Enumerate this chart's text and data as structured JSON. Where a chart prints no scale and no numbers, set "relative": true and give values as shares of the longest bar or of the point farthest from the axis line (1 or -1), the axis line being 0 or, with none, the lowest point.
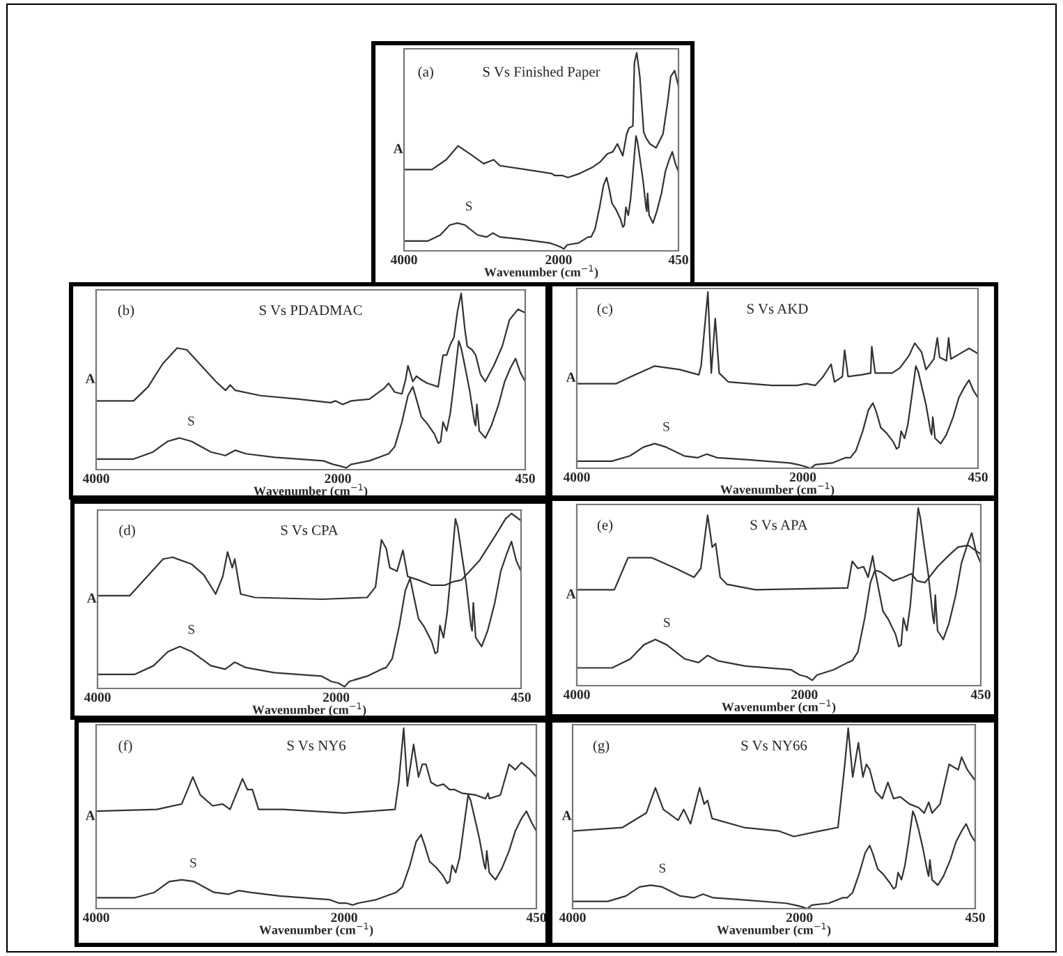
{
  "chart_data": [
    {
      "type": "line",
      "title": "S Vs Finished Paper",
      "annotations": [
        "(a)"
      ],
      "xlabel": "Wavenumber (cm$^{−1}$)",
      "ylabel": "A",
      "xlim": [
        4000,
        450
      ],
      "xticks": [
        4000,
        2000,
        450
      ],
      "relative": true,
      "tick_labels": "x",
      "series": [
        {
          "color": "#333333",
          "x": [
            4000,
            3640,
            3455,
            3300,
            3150,
            2970,
            2840,
            2760,
            2420,
            2090,
            2050,
            1950,
            1880,
            1730,
            1570,
            1460,
            1370,
            1300,
            1240,
            1170,
            1120,
            1090,
            1040,
            1020,
            990,
            950,
            900,
            870,
            820,
            740,
            650,
            590,
            550,
            500,
            450
          ],
          "values": [
            0.41,
            0.41,
            0.46,
            0.53,
            0.49,
            0.44,
            0.46,
            0.43,
            0.41,
            0.39,
            0.38,
            0.38,
            0.37,
            0.39,
            0.42,
            0.45,
            0.49,
            0.5,
            0.54,
            0.48,
            0.59,
            0.62,
            0.63,
            0.95,
            1.0,
            0.88,
            0.6,
            0.57,
            0.54,
            0.52,
            0.59,
            0.75,
            0.88,
            0.91,
            0.83
          ]
        },
        {
          "name": "S",
          "color": "#333333",
          "x": [
            4000,
            3690,
            3530,
            3410,
            3310,
            3210,
            3050,
            2930,
            2850,
            2760,
            2520,
            2120,
            2040,
            1980,
            1930,
            1890,
            1740,
            1620,
            1580,
            1530,
            1470,
            1420,
            1380,
            1350,
            1310,
            1260,
            1200,
            1170,
            1150,
            1130,
            1100,
            1070,
            1040,
            1000,
            980,
            950,
            910,
            870,
            860,
            850,
            830,
            780,
            730,
            670,
            620,
            570,
            530,
            490,
            450
          ],
          "values": [
            0.05,
            0.05,
            0.08,
            0.13,
            0.14,
            0.13,
            0.08,
            0.07,
            0.09,
            0.07,
            0.06,
            0.04,
            0.03,
            0.02,
            0.01,
            0.03,
            0.04,
            0.07,
            0.07,
            0.11,
            0.22,
            0.33,
            0.37,
            0.32,
            0.24,
            0.21,
            0.16,
            0.12,
            0.13,
            0.22,
            0.18,
            0.26,
            0.39,
            0.58,
            0.55,
            0.47,
            0.36,
            0.22,
            0.2,
            0.29,
            0.18,
            0.14,
            0.2,
            0.29,
            0.4,
            0.46,
            0.5,
            0.44,
            0.4
          ]
        }
      ]
    },
    {
      "type": "line",
      "title": "S Vs PDADMAC",
      "annotations": [
        "(b)"
      ],
      "xlabel": "Wavenumber (cm$^{−1}$)",
      "ylabel": "A",
      "xlim": [
        4000,
        450
      ],
      "xticks": [
        4000,
        2000,
        450
      ],
      "relative": true,
      "tick_labels": "x",
      "series": [
        {
          "color": "#333333",
          "x": [
            4000,
            3690,
            3570,
            3450,
            3330,
            3250,
            3130,
            3010,
            2930,
            2890,
            2850,
            2640,
            2320,
            2060,
            2020,
            1960,
            1890,
            1740,
            1620,
            1580,
            1530,
            1470,
            1440,
            1420,
            1380,
            1350,
            1310,
            1260,
            1170,
            1130,
            1100,
            1070,
            1040,
            1010,
            980,
            950,
            930,
            890,
            860,
            820,
            780,
            710,
            640,
            580,
            510,
            450
          ],
          "values": [
            0.39,
            0.39,
            0.47,
            0.6,
            0.69,
            0.68,
            0.59,
            0.5,
            0.45,
            0.48,
            0.45,
            0.42,
            0.4,
            0.38,
            0.39,
            0.37,
            0.39,
            0.4,
            0.46,
            0.49,
            0.44,
            0.43,
            0.51,
            0.59,
            0.5,
            0.53,
            0.51,
            0.49,
            0.47,
            0.65,
            0.65,
            0.71,
            0.75,
            0.9,
            1.0,
            0.8,
            0.7,
            0.68,
            0.65,
            0.54,
            0.5,
            0.59,
            0.7,
            0.85,
            0.91,
            0.89
          ]
        },
        {
          "name": "S",
          "color": "#333333",
          "x": [
            4000,
            3690,
            3530,
            3410,
            3310,
            3210,
            3050,
            2930,
            2850,
            2760,
            2520,
            2120,
            2040,
            1980,
            1930,
            1890,
            1740,
            1620,
            1580,
            1530,
            1470,
            1420,
            1380,
            1350,
            1310,
            1260,
            1200,
            1170,
            1150,
            1130,
            1100,
            1070,
            1040,
            1000,
            980,
            950,
            910,
            870,
            860,
            850,
            830,
            780,
            730,
            670,
            620,
            570,
            530,
            490,
            450
          ],
          "values": [
            0.06,
            0.06,
            0.1,
            0.16,
            0.18,
            0.16,
            0.1,
            0.08,
            0.11,
            0.09,
            0.07,
            0.05,
            0.03,
            0.02,
            0.01,
            0.03,
            0.05,
            0.08,
            0.09,
            0.13,
            0.27,
            0.42,
            0.47,
            0.4,
            0.3,
            0.26,
            0.2,
            0.15,
            0.16,
            0.27,
            0.22,
            0.32,
            0.49,
            0.73,
            0.69,
            0.59,
            0.45,
            0.27,
            0.25,
            0.37,
            0.22,
            0.18,
            0.25,
            0.37,
            0.5,
            0.58,
            0.63,
            0.55,
            0.5
          ]
        }
      ]
    },
    {
      "type": "line",
      "title": "S Vs AKD",
      "annotations": [
        "(c)"
      ],
      "xlabel": "Wavenumber (cm$^{−1}$)",
      "ylabel": "A",
      "xlim": [
        4000,
        450
      ],
      "xticks": [
        4000,
        2000,
        450
      ],
      "relative": true,
      "tick_labels": "x",
      "series": [
        {
          "color": "#333333",
          "x": [
            4000,
            3650,
            3520,
            3310,
            3090,
            2920,
            2900,
            2840,
            2810,
            2775,
            2740,
            2660,
            2270,
            2050,
            1970,
            1890,
            1820,
            1750,
            1720,
            1650,
            1630,
            1600,
            1480,
            1400,
            1390,
            1360,
            1210,
            1140,
            1060,
            1010,
            950,
            910,
            840,
            810,
            790,
            730,
            710,
            690,
            610,
            530,
            450
          ],
          "values": [
            0.48,
            0.48,
            0.52,
            0.58,
            0.56,
            0.53,
            0.58,
            1.0,
            0.54,
            0.85,
            0.54,
            0.49,
            0.47,
            0.47,
            0.48,
            0.47,
            0.52,
            0.59,
            0.49,
            0.52,
            0.67,
            0.52,
            0.53,
            0.54,
            0.69,
            0.54,
            0.54,
            0.57,
            0.64,
            0.71,
            0.66,
            0.56,
            0.62,
            0.74,
            0.63,
            0.61,
            0.74,
            0.62,
            0.65,
            0.68,
            0.65
          ]
        },
        {
          "name": "S",
          "color": "#333333",
          "x": [
            4000,
            3690,
            3530,
            3410,
            3310,
            3210,
            3050,
            2930,
            2850,
            2760,
            2520,
            2120,
            2040,
            1980,
            1930,
            1890,
            1740,
            1620,
            1580,
            1530,
            1470,
            1420,
            1380,
            1350,
            1310,
            1260,
            1200,
            1170,
            1150,
            1130,
            1100,
            1070,
            1040,
            1000,
            980,
            950,
            910,
            870,
            860,
            850,
            830,
            780,
            730,
            670,
            620,
            570,
            530,
            490,
            450
          ],
          "values": [
            0.04,
            0.04,
            0.07,
            0.12,
            0.14,
            0.12,
            0.07,
            0.06,
            0.08,
            0.06,
            0.05,
            0.03,
            0.02,
            0.01,
            0,
            0.02,
            0.03,
            0.06,
            0.06,
            0.1,
            0.21,
            0.33,
            0.37,
            0.32,
            0.23,
            0.2,
            0.15,
            0.11,
            0.12,
            0.21,
            0.17,
            0.25,
            0.39,
            0.58,
            0.55,
            0.47,
            0.36,
            0.21,
            0.19,
            0.29,
            0.17,
            0.14,
            0.19,
            0.29,
            0.4,
            0.46,
            0.5,
            0.44,
            0.4
          ]
        }
      ]
    },
    {
      "type": "line",
      "title": "S Vs CPA",
      "annotations": [
        "(d)"
      ],
      "xlabel": "Wavenumber (cm$^{−1}$)",
      "ylabel": "A",
      "xlim": [
        4000,
        450
      ],
      "xticks": [
        4000,
        2000,
        450
      ],
      "relative": true,
      "tick_labels": "x",
      "series": [
        {
          "color": "#333333",
          "x": [
            4000,
            3730,
            3570,
            3450,
            3370,
            3210,
            3110,
            3010,
            2950,
            2910,
            2870,
            2850,
            2800,
            2680,
            2120,
            1740,
            1670,
            1620,
            1580,
            1550,
            1490,
            1440,
            1400,
            1310,
            1200,
            1090,
            1020,
            950,
            800,
            660,
            580,
            530,
            450
          ],
          "values": [
            0.53,
            0.53,
            0.65,
            0.74,
            0.75,
            0.71,
            0.65,
            0.54,
            0.64,
            0.78,
            0.69,
            0.74,
            0.54,
            0.52,
            0.51,
            0.52,
            0.58,
            0.85,
            0.8,
            0.69,
            0.67,
            0.79,
            0.64,
            0.62,
            0.59,
            0.59,
            0.61,
            0.62,
            0.73,
            0.88,
            0.97,
            1.0,
            0.96
          ]
        },
        {
          "name": "S",
          "color": "#333333",
          "x": [
            4000,
            3690,
            3530,
            3410,
            3310,
            3210,
            3050,
            2930,
            2850,
            2760,
            2520,
            2120,
            2040,
            1980,
            1930,
            1890,
            1740,
            1620,
            1580,
            1530,
            1470,
            1420,
            1380,
            1350,
            1310,
            1260,
            1200,
            1170,
            1150,
            1130,
            1100,
            1070,
            1040,
            1000,
            980,
            950,
            910,
            870,
            860,
            850,
            830,
            780,
            730,
            670,
            620,
            570,
            530,
            490,
            450
          ],
          "values": [
            0.08,
            0.08,
            0.13,
            0.21,
            0.24,
            0.21,
            0.13,
            0.11,
            0.15,
            0.12,
            0.09,
            0.07,
            0.04,
            0.03,
            0.01,
            0.04,
            0.07,
            0.11,
            0.12,
            0.17,
            0.36,
            0.56,
            0.63,
            0.53,
            0.4,
            0.35,
            0.27,
            0.2,
            0.21,
            0.36,
            0.29,
            0.43,
            0.65,
            0.97,
            0.92,
            0.78,
            0.6,
            0.36,
            0.33,
            0.49,
            0.29,
            0.24,
            0.33,
            0.49,
            0.67,
            0.77,
            0.84,
            0.73,
            0.67
          ]
        }
      ]
    },
    {
      "type": "line",
      "title": "S Vs APA",
      "annotations": [
        "(e)"
      ],
      "xlabel": "Wavenumber (cm$^{−1}$)",
      "ylabel": "A",
      "xlim": [
        4000,
        450
      ],
      "xticks": [
        4000,
        2000,
        450
      ],
      "relative": true,
      "tick_labels": "x",
      "series": [
        {
          "color": "#333333",
          "x": [
            4000,
            3670,
            3550,
            3340,
            3130,
            2970,
            2910,
            2850,
            2810,
            2780,
            2740,
            2680,
            2430,
            1660,
            1620,
            1580,
            1530,
            1480,
            1440,
            1400,
            1380,
            1330,
            1220,
            1130,
            1060,
            1010,
            940,
            830,
            720,
            650,
            560,
            450
          ],
          "values": [
            0.54,
            0.54,
            0.72,
            0.72,
            0.66,
            0.61,
            0.66,
            0.96,
            0.78,
            0.8,
            0.61,
            0.57,
            0.54,
            0.55,
            0.55,
            0.7,
            0.66,
            0.67,
            0.61,
            0.73,
            0.65,
            0.64,
            0.59,
            0.61,
            0.63,
            0.59,
            0.58,
            0.67,
            0.74,
            0.78,
            0.79,
            0.74
          ]
        },
        {
          "name": "S",
          "color": "#333333",
          "x": [
            4000,
            3690,
            3530,
            3410,
            3310,
            3210,
            3050,
            2930,
            2850,
            2760,
            2520,
            2120,
            2040,
            1980,
            1930,
            1890,
            1740,
            1620,
            1580,
            1530,
            1470,
            1420,
            1380,
            1350,
            1310,
            1260,
            1200,
            1170,
            1150,
            1130,
            1100,
            1070,
            1040,
            1000,
            980,
            950,
            910,
            870,
            860,
            850,
            830,
            780,
            730,
            670,
            620,
            570,
            530,
            490,
            450
          ],
          "values": [
            0.1,
            0.1,
            0.15,
            0.23,
            0.26,
            0.23,
            0.15,
            0.13,
            0.17,
            0.14,
            0.11,
            0.09,
            0.06,
            0.05,
            0.03,
            0.06,
            0.09,
            0.13,
            0.14,
            0.19,
            0.38,
            0.58,
            0.65,
            0.55,
            0.42,
            0.37,
            0.29,
            0.22,
            0.23,
            0.38,
            0.31,
            0.45,
            0.67,
            1.0,
            0.94,
            0.8,
            0.62,
            0.38,
            0.35,
            0.51,
            0.31,
            0.26,
            0.35,
            0.51,
            0.69,
            0.79,
            0.86,
            0.75,
            0.69
          ]
        }
      ]
    },
    {
      "type": "line",
      "title": "S Vs NY6",
      "annotations": [
        "(f)"
      ],
      "xlabel": "Wavenumber (cm$^{−1}$)",
      "ylabel": "A",
      "xlim": [
        4000,
        450
      ],
      "xticks": [
        4000,
        2000,
        450
      ],
      "relative": true,
      "tick_labels": "x",
      "series": [
        {
          "color": "#333333",
          "x": [
            4000,
            3510,
            3310,
            3220,
            3160,
            3060,
            2980,
            2920,
            2820,
            2780,
            2740,
            2690,
            2490,
            2000,
            1590,
            1560,
            1520,
            1490,
            1440,
            1400,
            1370,
            1340,
            1300,
            1250,
            1200,
            1150,
            1110,
            1050,
            940,
            860,
            840,
            830,
            740,
            670,
            620,
            570,
            500,
            450
          ],
          "values": [
            0.54,
            0.55,
            0.58,
            0.73,
            0.63,
            0.57,
            0.58,
            0.55,
            0.72,
            0.66,
            0.66,
            0.55,
            0.55,
            0.53,
            0.55,
            0.7,
            1.0,
            0.68,
            0.91,
            0.73,
            0.8,
            0.8,
            0.7,
            0.68,
            0.69,
            0.66,
            0.66,
            0.64,
            0.63,
            0.61,
            0.64,
            0.61,
            0.63,
            0.8,
            0.77,
            0.81,
            0.77,
            0.73
          ]
        },
        {
          "name": "S",
          "color": "#333333",
          "x": [
            4000,
            3690,
            3530,
            3410,
            3310,
            3210,
            3050,
            2930,
            2850,
            2760,
            2520,
            2120,
            2040,
            1980,
            1930,
            1890,
            1740,
            1620,
            1580,
            1530,
            1470,
            1420,
            1380,
            1350,
            1310,
            1260,
            1200,
            1170,
            1150,
            1130,
            1100,
            1070,
            1040,
            1000,
            980,
            950,
            910,
            870,
            860,
            850,
            830,
            780,
            730,
            670,
            620,
            570,
            530,
            490,
            450
          ],
          "values": [
            0.06,
            0.06,
            0.09,
            0.15,
            0.16,
            0.15,
            0.09,
            0.08,
            0.1,
            0.09,
            0.07,
            0.05,
            0.03,
            0.03,
            0.02,
            0.03,
            0.05,
            0.08,
            0.09,
            0.12,
            0.24,
            0.37,
            0.41,
            0.35,
            0.26,
            0.23,
            0.18,
            0.14,
            0.15,
            0.24,
            0.2,
            0.28,
            0.43,
            0.63,
            0.6,
            0.51,
            0.39,
            0.24,
            0.22,
            0.32,
            0.2,
            0.16,
            0.22,
            0.32,
            0.43,
            0.5,
            0.54,
            0.48,
            0.43
          ]
        }
      ]
    },
    {
      "type": "line",
      "title": "S Vs NY66",
      "annotations": [
        "(g)"
      ],
      "xlabel": "Wavenumber (cm$^{−1}$)",
      "ylabel": "A",
      "xlim": [
        4000,
        450
      ],
      "xticks": [
        4000,
        2000,
        450
      ],
      "relative": true,
      "tick_labels": "x",
      "series": [
        {
          "color": "#333333",
          "x": [
            4000,
            3560,
            3350,
            3270,
            3200,
            3070,
            3020,
            2960,
            2880,
            2840,
            2810,
            2770,
            2490,
            2180,
            2050,
            1820,
            1660,
            1600,
            1570,
            1530,
            1480,
            1440,
            1410,
            1380,
            1330,
            1270,
            1220,
            1170,
            1110,
            1030,
            950,
            900,
            860,
            830,
            760,
            680,
            600,
            570,
            520,
            450
          ],
          "values": [
            0.43,
            0.45,
            0.53,
            0.67,
            0.55,
            0.49,
            0.55,
            0.47,
            0.67,
            0.58,
            0.6,
            0.5,
            0.45,
            0.43,
            0.4,
            0.43,
            0.45,
            0.8,
            1.0,
            0.73,
            0.92,
            0.73,
            0.8,
            0.77,
            0.65,
            0.61,
            0.7,
            0.61,
            0.62,
            0.58,
            0.56,
            0.53,
            0.59,
            0.53,
            0.58,
            0.8,
            0.77,
            0.84,
            0.77,
            0.71
          ]
        },
        {
          "name": "S",
          "color": "#333333",
          "x": [
            4000,
            3690,
            3530,
            3410,
            3310,
            3210,
            3050,
            2930,
            2850,
            2760,
            2520,
            2120,
            2040,
            1980,
            1930,
            1890,
            1740,
            1620,
            1580,
            1530,
            1470,
            1420,
            1380,
            1350,
            1310,
            1260,
            1200,
            1170,
            1150,
            1130,
            1100,
            1070,
            1040,
            1000,
            980,
            950,
            910,
            870,
            860,
            850,
            830,
            780,
            730,
            670,
            620,
            570,
            530,
            490,
            450
          ],
          "values": [
            0.04,
            0.04,
            0.07,
            0.12,
            0.13,
            0.12,
            0.07,
            0.06,
            0.08,
            0.06,
            0.05,
            0.03,
            0.02,
            0.01,
            0,
            0.02,
            0.03,
            0.06,
            0.06,
            0.09,
            0.2,
            0.31,
            0.35,
            0.3,
            0.22,
            0.19,
            0.14,
            0.11,
            0.12,
            0.2,
            0.16,
            0.24,
            0.36,
            0.54,
            0.51,
            0.44,
            0.33,
            0.2,
            0.18,
            0.27,
            0.16,
            0.13,
            0.18,
            0.27,
            0.37,
            0.43,
            0.47,
            0.41,
            0.37
          ]
        }
      ]
    }
  ]
}
